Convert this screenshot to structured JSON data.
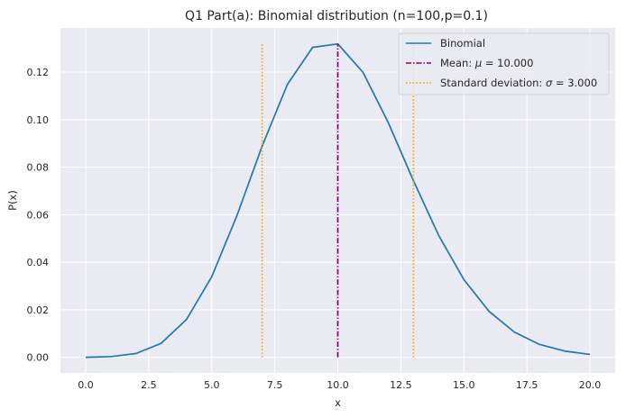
{
  "chart_data": {
    "type": "line",
    "title": "Q1 Part(a): Binomial distribution (n=100,p=0.1)",
    "xlabel": "x",
    "ylabel": "P(x)",
    "xlim": [
      -1.0,
      21.0
    ],
    "ylim": [
      -0.0066,
      0.1386
    ],
    "xticks": [
      0.0,
      2.5,
      5.0,
      7.5,
      10.0,
      12.5,
      15.0,
      17.5,
      20.0
    ],
    "xtick_labels": [
      "0.0",
      "2.5",
      "5.0",
      "7.5",
      "10.0",
      "12.5",
      "15.0",
      "17.5",
      "20.0"
    ],
    "yticks": [
      0.0,
      0.02,
      0.04,
      0.06,
      0.08,
      0.1,
      0.12
    ],
    "ytick_labels": [
      "0.00",
      "0.02",
      "0.04",
      "0.06",
      "0.08",
      "0.10",
      "0.12"
    ],
    "grid": true,
    "legend_position": "top-right",
    "series": [
      {
        "name": "Binomial",
        "style": "solid",
        "color": "#1f77b4",
        "x": [
          0,
          1,
          2,
          3,
          4,
          5,
          6,
          7,
          8,
          9,
          10,
          11,
          12,
          13,
          14,
          15,
          16,
          17,
          18,
          19,
          20
        ],
        "y": [
          0.0,
          0.0003,
          0.0016,
          0.0059,
          0.0159,
          0.0339,
          0.0596,
          0.0889,
          0.1148,
          0.1304,
          0.1319,
          0.1199,
          0.0988,
          0.0743,
          0.0513,
          0.0327,
          0.0193,
          0.0106,
          0.0054,
          0.0026,
          0.0012
        ]
      },
      {
        "name": "Mean: μ = 10.000",
        "style": "dashdot",
        "color": "#800080",
        "x": [
          10.0,
          10.0
        ],
        "y": [
          0.0,
          0.1319
        ]
      },
      {
        "name": "Standard deviation: σ = 3.000",
        "style": "dotted",
        "color": "#ffa500",
        "x": [
          7.0,
          7.0
        ],
        "y": [
          0.0,
          0.1319
        ]
      },
      {
        "name": "",
        "style": "dotted",
        "color": "#ffa500",
        "x": [
          13.0,
          13.0
        ],
        "y": [
          0.0,
          0.1319
        ]
      }
    ]
  },
  "legend": {
    "binomial": "Binomial",
    "mean_prefix": "Mean: ",
    "mean_symbol": "μ",
    "mean_suffix": " = 10.000",
    "sd_prefix": "Standard deviation: ",
    "sd_symbol": "σ",
    "sd_suffix": " = 3.000"
  },
  "colors": {
    "background": "#eaeaf2",
    "grid": "#ffffff"
  }
}
